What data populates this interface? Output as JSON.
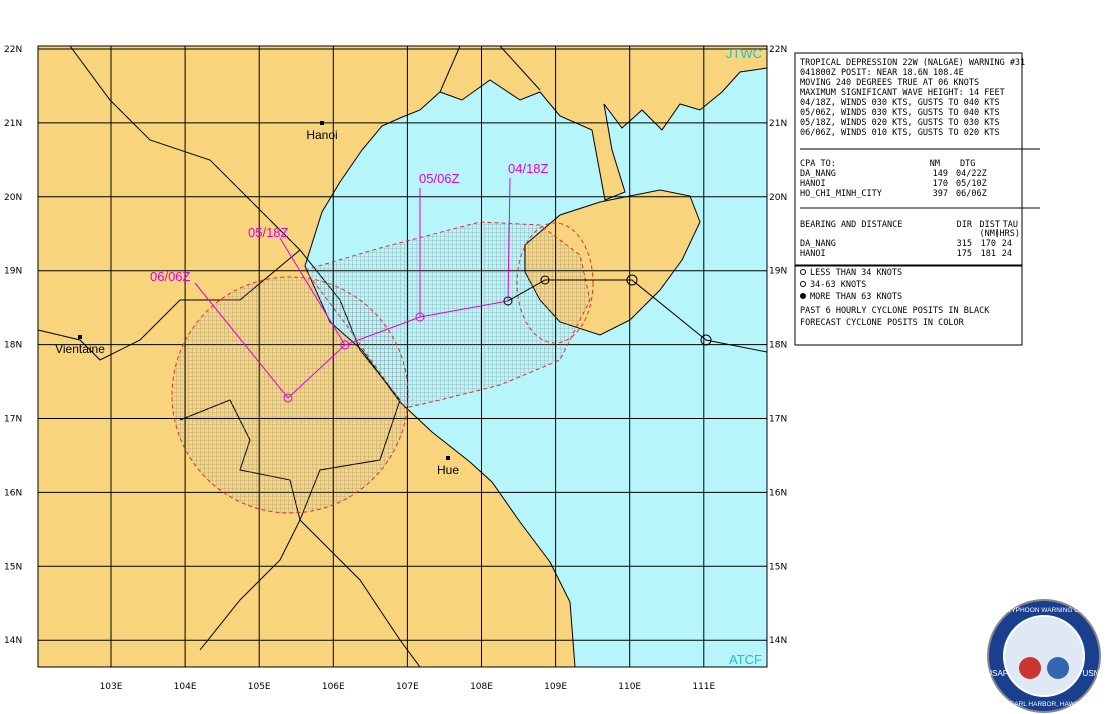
{
  "header": {
    "agency": "JTWC",
    "source": "ATCF"
  },
  "map": {
    "lat_labels": [
      "22N",
      "21N",
      "20N",
      "19N",
      "18N",
      "17N",
      "16N",
      "15N",
      "14N"
    ],
    "lon_labels": [
      "103E",
      "104E",
      "105E",
      "106E",
      "107E",
      "108E",
      "109E",
      "110E",
      "111E"
    ],
    "cities": [
      "Hanoi",
      "Vientaine",
      "Hue"
    ],
    "forecast_labels": [
      "04/18Z",
      "05/06Z",
      "05/18Z",
      "06/06Z"
    ]
  },
  "warning": {
    "lines": [
      "TROPICAL DEPRESSION 22W (NALGAE) WARNING #31",
      "041800Z POSIT: NEAR 18.6N 108.4E",
      "MOVING 240 DEGREES TRUE AT 06 KNOTS",
      "MAXIMUM SIGNIFICANT WAVE HEIGHT: 14 FEET",
      "04/18Z, WINDS 030 KTS, GUSTS TO 040 KTS",
      "05/06Z, WINDS 030 KTS, GUSTS TO 040 KTS",
      "05/18Z, WINDS 020 KTS, GUSTS TO 030 KTS",
      "06/06Z, WINDS 010 KTS, GUSTS TO 020 KTS"
    ]
  },
  "cpa": {
    "headers": [
      "CPA TO:",
      "NM",
      "DTG"
    ],
    "rows": [
      [
        "DA_NANG",
        "149",
        "04/22Z"
      ],
      [
        "HANOI",
        "170",
        "05/10Z"
      ],
      [
        "HO_CHI_MINH_CITY",
        "397",
        "06/06Z"
      ]
    ]
  },
  "bearing": {
    "headers": [
      "BEARING AND DISTANCE",
      "DIR",
      "DIST",
      "TAU"
    ],
    "subheaders": [
      "(NM)",
      "(HRS)"
    ],
    "rows": [
      [
        "DA_NANG",
        "315",
        "170",
        "24"
      ],
      [
        "HANOI",
        "175",
        "181",
        "24"
      ]
    ]
  },
  "legend": {
    "items": [
      "LESS THAN 34 KNOTS",
      "34-63 KNOTS",
      "MORE THAN 63 KNOTS"
    ],
    "notes": [
      "PAST 6 HOURLY CYCLONE POSITS IN BLACK",
      "FORECAST CYCLONE POSITS IN COLOR"
    ]
  },
  "logo": {
    "ring": "JOINT TYPHOON WARNING CENTER",
    "left": "USAF",
    "right": "USN",
    "bottom": "PEARL HARBOR, HAWAII"
  }
}
